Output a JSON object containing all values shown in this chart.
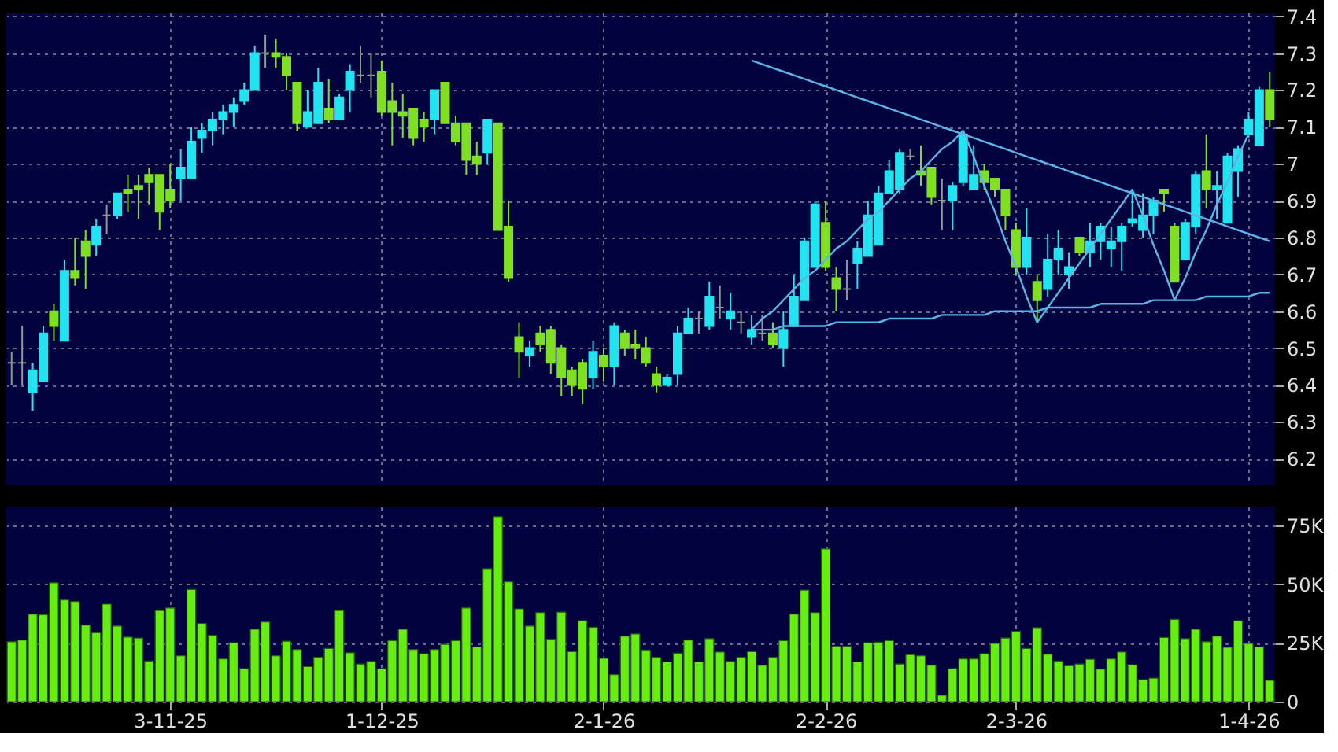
{
  "chart_data": [
    {
      "type": "candlestick",
      "tick_labels": "y",
      "grid": true,
      "ylim": [
        6.13,
        7.41
      ],
      "yticks": [
        6.2,
        6.3,
        6.4,
        6.5,
        6.6,
        6.7,
        6.8,
        6.9,
        7,
        7.1,
        7.2,
        7.3,
        7.4
      ],
      "categories": [
        null,
        null,
        null,
        null,
        null,
        null,
        null,
        null,
        null,
        null,
        null,
        null,
        null,
        null,
        null,
        null,
        null,
        null,
        null,
        null,
        null,
        null,
        null,
        null,
        null,
        null,
        null,
        null,
        null,
        null,
        null,
        null,
        null,
        null,
        null,
        null,
        null,
        null,
        null,
        null,
        null,
        null,
        null,
        null,
        null,
        null,
        null,
        null,
        null,
        null,
        null,
        null,
        null,
        null,
        null,
        null,
        null,
        null,
        null,
        null,
        null,
        null,
        null,
        null,
        null,
        null,
        null,
        null,
        null,
        null,
        null,
        null,
        null,
        null,
        null,
        null,
        null,
        null,
        null,
        null,
        null,
        null,
        null,
        null,
        null,
        null,
        null,
        null,
        null,
        null,
        null,
        null,
        null,
        null,
        null,
        null,
        null,
        null,
        null,
        null,
        null,
        null,
        null,
        null,
        null,
        null,
        null,
        null,
        null,
        null,
        null,
        null,
        null,
        null,
        null,
        null,
        null,
        null,
        null,
        null
      ],
      "ohlc": [
        [
          6.46,
          6.49,
          6.4,
          6.46
        ],
        [
          6.46,
          6.56,
          6.4,
          6.46
        ],
        [
          6.38,
          6.46,
          6.33,
          6.44
        ],
        [
          6.41,
          6.56,
          6.41,
          6.54
        ],
        [
          6.6,
          6.62,
          6.52,
          6.56
        ],
        [
          6.52,
          6.74,
          6.52,
          6.71
        ],
        [
          6.71,
          6.8,
          6.67,
          6.69
        ],
        [
          6.79,
          6.82,
          6.66,
          6.75
        ],
        [
          6.78,
          6.85,
          6.75,
          6.83
        ],
        [
          6.86,
          6.89,
          6.81,
          6.86
        ],
        [
          6.86,
          6.92,
          6.85,
          6.92
        ],
        [
          6.93,
          6.97,
          6.87,
          6.92
        ],
        [
          6.94,
          6.97,
          6.85,
          6.93
        ],
        [
          6.97,
          6.99,
          6.89,
          6.95
        ],
        [
          6.97,
          6.97,
          6.82,
          6.87
        ],
        [
          6.93,
          7.0,
          6.88,
          6.9
        ],
        [
          6.96,
          7.04,
          6.9,
          6.99
        ],
        [
          6.96,
          7.1,
          6.96,
          7.06
        ],
        [
          7.07,
          7.11,
          7.03,
          7.09
        ],
        [
          7.09,
          7.14,
          7.05,
          7.12
        ],
        [
          7.12,
          7.16,
          7.08,
          7.14
        ],
        [
          7.14,
          7.18,
          7.1,
          7.16
        ],
        [
          7.17,
          7.22,
          7.16,
          7.2
        ],
        [
          7.2,
          7.32,
          7.2,
          7.3
        ],
        [
          7.3,
          7.35,
          7.26,
          7.3
        ],
        [
          7.3,
          7.34,
          7.26,
          7.29
        ],
        [
          7.29,
          7.3,
          7.2,
          7.24
        ],
        [
          7.22,
          7.22,
          7.09,
          7.11
        ],
        [
          7.1,
          7.2,
          7.1,
          7.14
        ],
        [
          7.11,
          7.26,
          7.11,
          7.22
        ],
        [
          7.15,
          7.23,
          7.11,
          7.12
        ],
        [
          7.12,
          7.19,
          7.12,
          7.18
        ],
        [
          7.2,
          7.27,
          7.14,
          7.25
        ],
        [
          7.24,
          7.32,
          7.22,
          7.24
        ],
        [
          7.24,
          7.3,
          7.18,
          7.24
        ],
        [
          7.25,
          7.28,
          7.13,
          7.14
        ],
        [
          7.17,
          7.22,
          7.05,
          7.14
        ],
        [
          7.14,
          7.19,
          7.07,
          7.13
        ],
        [
          7.15,
          7.15,
          7.05,
          7.07
        ],
        [
          7.12,
          7.14,
          7.06,
          7.1
        ],
        [
          7.12,
          7.2,
          7.08,
          7.2
        ],
        [
          7.22,
          7.22,
          7.11,
          7.11
        ],
        [
          7.11,
          7.13,
          7.05,
          7.06
        ],
        [
          7.11,
          7.11,
          6.97,
          7.01
        ],
        [
          7.02,
          7.06,
          6.97,
          7.0
        ],
        [
          7.03,
          7.12,
          7.0,
          7.12
        ],
        [
          7.11,
          7.11,
          6.82,
          6.82
        ],
        [
          6.83,
          6.9,
          6.68,
          6.69
        ],
        [
          6.53,
          6.57,
          6.42,
          6.49
        ],
        [
          6.48,
          6.52,
          6.45,
          6.5
        ],
        [
          6.54,
          6.56,
          6.49,
          6.51
        ],
        [
          6.55,
          6.56,
          6.43,
          6.46
        ],
        [
          6.5,
          6.51,
          6.37,
          6.42
        ],
        [
          6.44,
          6.45,
          6.37,
          6.4
        ],
        [
          6.46,
          6.47,
          6.35,
          6.39
        ],
        [
          6.42,
          6.52,
          6.39,
          6.49
        ],
        [
          6.48,
          6.5,
          6.41,
          6.45
        ],
        [
          6.45,
          6.57,
          6.4,
          6.56
        ],
        [
          6.54,
          6.55,
          6.48,
          6.5
        ],
        [
          6.51,
          6.55,
          6.47,
          6.5
        ],
        [
          6.5,
          6.53,
          6.45,
          6.46
        ],
        [
          6.43,
          6.45,
          6.38,
          6.4
        ],
        [
          6.4,
          6.43,
          6.4,
          6.42
        ],
        [
          6.43,
          6.56,
          6.4,
          6.54
        ],
        [
          6.54,
          6.61,
          6.54,
          6.58
        ],
        [
          6.58,
          6.6,
          6.54,
          6.58
        ],
        [
          6.56,
          6.68,
          6.55,
          6.64
        ],
        [
          6.61,
          6.67,
          6.58,
          6.61
        ],
        [
          6.58,
          6.65,
          6.55,
          6.6
        ],
        [
          6.57,
          6.6,
          6.54,
          6.57
        ],
        [
          6.53,
          6.59,
          6.51,
          6.55
        ],
        [
          6.54,
          6.59,
          6.52,
          6.54
        ],
        [
          6.54,
          6.57,
          6.5,
          6.51
        ],
        [
          6.5,
          6.6,
          6.45,
          6.55
        ],
        [
          6.56,
          6.7,
          6.56,
          6.64
        ],
        [
          6.63,
          6.8,
          6.63,
          6.79
        ],
        [
          6.72,
          6.9,
          6.72,
          6.89
        ],
        [
          6.84,
          6.9,
          6.71,
          6.72
        ],
        [
          6.69,
          6.72,
          6.6,
          6.66
        ],
        [
          6.66,
          6.74,
          6.63,
          6.66
        ],
        [
          6.73,
          6.79,
          6.66,
          6.77
        ],
        [
          6.75,
          6.9,
          6.75,
          6.86
        ],
        [
          6.78,
          6.94,
          6.78,
          6.92
        ],
        [
          6.92,
          7.01,
          6.92,
          6.98
        ],
        [
          6.93,
          7.04,
          6.92,
          7.03
        ],
        [
          7.02,
          7.04,
          7.01,
          7.02
        ],
        [
          6.98,
          7.05,
          6.94,
          6.97
        ],
        [
          6.99,
          6.99,
          6.89,
          6.91
        ],
        [
          6.9,
          6.96,
          6.82,
          6.9
        ],
        [
          6.9,
          6.95,
          6.82,
          6.94
        ],
        [
          6.95,
          7.09,
          6.94,
          7.08
        ],
        [
          6.93,
          7.05,
          6.93,
          6.97
        ],
        [
          6.98,
          7.0,
          6.93,
          6.95
        ],
        [
          6.96,
          6.96,
          6.91,
          6.93
        ],
        [
          6.93,
          6.93,
          6.82,
          6.86
        ],
        [
          6.82,
          6.84,
          6.7,
          6.72
        ],
        [
          6.72,
          6.88,
          6.7,
          6.8
        ],
        [
          6.68,
          6.7,
          6.57,
          6.63
        ],
        [
          6.66,
          6.81,
          6.64,
          6.74
        ],
        [
          6.74,
          6.82,
          6.7,
          6.77
        ],
        [
          6.7,
          6.76,
          6.66,
          6.72
        ],
        [
          6.8,
          6.8,
          6.75,
          6.76
        ],
        [
          6.76,
          6.84,
          6.72,
          6.79
        ],
        [
          6.79,
          6.84,
          6.74,
          6.83
        ],
        [
          6.77,
          6.83,
          6.72,
          6.79
        ],
        [
          6.79,
          6.84,
          6.71,
          6.83
        ],
        [
          6.84,
          6.93,
          6.83,
          6.85
        ],
        [
          6.82,
          6.92,
          6.8,
          6.86
        ],
        [
          6.86,
          6.91,
          6.81,
          6.9
        ],
        [
          6.93,
          6.93,
          6.87,
          6.92
        ],
        [
          6.83,
          6.84,
          6.68,
          6.68
        ],
        [
          6.74,
          6.85,
          6.74,
          6.84
        ],
        [
          6.83,
          6.98,
          6.81,
          6.97
        ],
        [
          6.98,
          7.08,
          6.88,
          6.93
        ],
        [
          6.93,
          6.98,
          6.85,
          6.94
        ],
        [
          6.84,
          7.03,
          6.84,
          7.02
        ],
        [
          6.98,
          7.05,
          6.91,
          7.04
        ],
        [
          7.08,
          7.14,
          7.07,
          7.12
        ],
        [
          7.05,
          7.21,
          7.05,
          7.2
        ],
        [
          7.2,
          7.25,
          7.1,
          7.12
        ]
      ],
      "colors": [
        "#8c9c8c",
        "#8c9c8c",
        "#22e4f0",
        "#22e4f0",
        "#7ee021",
        "#22e4f0",
        "#7ee021",
        "#7ee021",
        "#22e4f0",
        "#8c9c8c",
        "#22e4f0",
        "#7ee021",
        "#7ee021",
        "#7ee021",
        "#7ee021",
        "#7ee021",
        "#22e4f0",
        "#22e4f0",
        "#22e4f0",
        "#22e4f0",
        "#22e4f0",
        "#22e4f0",
        "#22e4f0",
        "#22e4f0",
        "#8c9c8c",
        "#7ee021",
        "#7ee021",
        "#7ee021",
        "#22e4f0",
        "#22e4f0",
        "#7ee021",
        "#22e4f0",
        "#22e4f0",
        "#8c9c8c",
        "#8c9c8c",
        "#7ee021",
        "#7ee021",
        "#7ee021",
        "#7ee021",
        "#7ee021",
        "#22e4f0",
        "#7ee021",
        "#7ee021",
        "#7ee021",
        "#7ee021",
        "#22e4f0",
        "#7ee021",
        "#7ee021",
        "#7ee021",
        "#22e4f0",
        "#7ee021",
        "#7ee021",
        "#7ee021",
        "#7ee021",
        "#7ee021",
        "#22e4f0",
        "#7ee021",
        "#22e4f0",
        "#7ee021",
        "#7ee021",
        "#7ee021",
        "#7ee021",
        "#22e4f0",
        "#22e4f0",
        "#22e4f0",
        "#8c9c8c",
        "#22e4f0",
        "#8c9c8c",
        "#22e4f0",
        "#8c9c8c",
        "#22e4f0",
        "#8c9c8c",
        "#7ee021",
        "#22e4f0",
        "#22e4f0",
        "#22e4f0",
        "#22e4f0",
        "#7ee021",
        "#7ee021",
        "#8c9c8c",
        "#22e4f0",
        "#22e4f0",
        "#22e4f0",
        "#22e4f0",
        "#22e4f0",
        "#8c9c8c",
        "#7ee021",
        "#7ee021",
        "#8c9c8c",
        "#22e4f0",
        "#22e4f0",
        "#22e4f0",
        "#7ee021",
        "#7ee021",
        "#7ee021",
        "#7ee021",
        "#22e4f0",
        "#7ee021",
        "#22e4f0",
        "#22e4f0",
        "#22e4f0",
        "#7ee021",
        "#22e4f0",
        "#22e4f0",
        "#22e4f0",
        "#22e4f0",
        "#22e4f0",
        "#22e4f0",
        "#22e4f0",
        "#7ee021",
        "#7ee021",
        "#22e4f0",
        "#22e4f0",
        "#7ee021",
        "#22e4f0",
        "#22e4f0",
        "#22e4f0",
        "#22e4f0",
        "#22e4f0",
        "#7ee021"
      ],
      "series": [
        {
          "type": "line",
          "color": "#5ab4e6",
          "values": [
            null,
            null,
            null,
            null,
            null,
            null,
            null,
            null,
            null,
            null,
            null,
            null,
            null,
            null,
            null,
            null,
            null,
            null,
            null,
            null,
            null,
            null,
            null,
            null,
            null,
            null,
            null,
            null,
            null,
            null,
            null,
            null,
            null,
            null,
            null,
            null,
            null,
            null,
            null,
            null,
            null,
            null,
            null,
            null,
            null,
            null,
            null,
            null,
            null,
            null,
            null,
            null,
            null,
            null,
            null,
            null,
            null,
            null,
            null,
            null,
            null,
            null,
            null,
            null,
            null,
            null,
            null,
            null,
            null,
            null,
            7.28,
            7.27,
            7.26,
            7.25,
            7.24,
            7.23,
            7.22,
            7.21,
            7.2,
            7.19,
            7.18,
            7.17,
            7.16,
            7.15,
            7.14,
            7.13,
            7.12,
            7.11,
            7.1,
            7.09,
            7.08,
            7.07,
            7.06,
            7.05,
            7.04,
            7.03,
            7.02,
            7.01,
            7.0,
            6.99,
            6.98,
            6.97,
            6.96,
            6.95,
            6.94,
            6.93,
            6.92,
            6.91,
            6.9,
            6.89,
            6.88,
            6.87,
            6.86,
            6.85,
            6.84,
            6.83,
            6.82,
            6.81,
            6.8,
            6.79
          ]
        },
        {
          "type": "line",
          "color": "#5ab4e6",
          "values": [
            null,
            null,
            null,
            null,
            null,
            null,
            null,
            null,
            null,
            null,
            null,
            null,
            null,
            null,
            null,
            null,
            null,
            null,
            null,
            null,
            null,
            null,
            null,
            null,
            null,
            null,
            null,
            null,
            null,
            null,
            null,
            null,
            null,
            null,
            null,
            null,
            null,
            null,
            null,
            null,
            null,
            null,
            null,
            null,
            null,
            null,
            null,
            null,
            null,
            null,
            null,
            null,
            null,
            null,
            null,
            null,
            null,
            null,
            null,
            null,
            null,
            null,
            null,
            null,
            null,
            null,
            null,
            null,
            null,
            null,
            6.55,
            6.55,
            6.55,
            6.56,
            6.56,
            6.56,
            6.56,
            6.56,
            6.57,
            6.57,
            6.57,
            6.57,
            6.57,
            6.58,
            6.58,
            6.58,
            6.58,
            6.58,
            6.59,
            6.59,
            6.59,
            6.59,
            6.59,
            6.6,
            6.6,
            6.6,
            6.6,
            6.6,
            6.61,
            6.61,
            6.61,
            6.61,
            6.61,
            6.62,
            6.62,
            6.62,
            6.62,
            6.62,
            6.63,
            6.63,
            6.63,
            6.63,
            6.63,
            6.64,
            6.64,
            6.64,
            6.64,
            6.64,
            6.65,
            6.65
          ]
        },
        {
          "type": "line",
          "color": "#5ab4e6",
          "values": [
            null,
            null,
            null,
            null,
            null,
            null,
            null,
            null,
            null,
            null,
            null,
            null,
            null,
            null,
            null,
            null,
            null,
            null,
            null,
            null,
            null,
            null,
            null,
            null,
            null,
            null,
            null,
            null,
            null,
            null,
            null,
            null,
            null,
            null,
            null,
            null,
            null,
            null,
            null,
            null,
            null,
            null,
            null,
            null,
            null,
            null,
            null,
            null,
            null,
            null,
            null,
            null,
            null,
            null,
            null,
            null,
            null,
            null,
            null,
            null,
            null,
            null,
            null,
            null,
            null,
            null,
            null,
            null,
            null,
            null,
            6.55,
            6.58,
            6.6,
            6.63,
            6.66,
            6.69,
            6.71,
            6.74,
            6.77,
            6.79,
            6.82,
            6.85,
            6.87,
            6.9,
            6.93,
            6.96,
            6.98,
            7.01,
            7.04,
            7.06,
            7.09,
            7.02,
            6.94,
            6.87,
            6.79,
            6.72,
            6.64,
            6.57,
            6.61,
            6.65,
            6.69,
            6.73,
            6.77,
            6.81,
            6.85,
            6.89,
            6.93,
            6.86,
            6.78,
            6.71,
            6.63,
            6.69,
            6.76,
            6.82,
            6.89,
            6.95,
            7.02,
            7.08,
            null,
            null
          ]
        }
      ]
    },
    {
      "type": "bar",
      "grid": true,
      "color": "#66ee11",
      "ylim": [
        0,
        83000
      ],
      "yticks": [
        0,
        {
          "value": 25000,
          "label": "25K"
        },
        {
          "value": 50000,
          "label": "50K"
        },
        {
          "value": 75000,
          "label": "75K"
        }
      ],
      "categories": [
        null,
        null,
        null,
        null,
        null,
        null,
        null,
        null,
        null,
        null,
        null,
        null,
        null,
        null,
        null,
        "3-11-25",
        null,
        null,
        null,
        null,
        null,
        null,
        null,
        null,
        null,
        null,
        null,
        null,
        null,
        null,
        null,
        null,
        null,
        null,
        null,
        "1-12-25",
        null,
        null,
        null,
        null,
        null,
        null,
        null,
        null,
        null,
        null,
        null,
        null,
        null,
        null,
        null,
        null,
        null,
        null,
        null,
        null,
        "2-1-26",
        null,
        null,
        null,
        null,
        null,
        null,
        null,
        null,
        null,
        null,
        null,
        null,
        null,
        null,
        null,
        null,
        null,
        null,
        null,
        null,
        "2-2-26",
        null,
        null,
        null,
        null,
        null,
        null,
        null,
        null,
        null,
        null,
        null,
        null,
        null,
        null,
        null,
        null,
        null,
        "2-3-26",
        null,
        null,
        null,
        null,
        null,
        null,
        null,
        null,
        null,
        null,
        null,
        null,
        null,
        null,
        null,
        null,
        null,
        null,
        null,
        null,
        null,
        "1-4-26",
        null,
        null
      ],
      "values": [
        25500,
        26200,
        37300,
        37000,
        50600,
        43300,
        42600,
        32600,
        29300,
        41500,
        32200,
        27500,
        27100,
        17300,
        38800,
        39900,
        19500,
        47700,
        33300,
        28200,
        18200,
        25100,
        14000,
        30800,
        33900,
        19500,
        25700,
        22200,
        14900,
        18900,
        22600,
        38800,
        20800,
        16000,
        17100,
        14000,
        26000,
        30800,
        22200,
        20400,
        22200,
        24400,
        26000,
        39900,
        23300,
        56600,
        78700,
        51000,
        39500,
        32200,
        37900,
        26600,
        38100,
        21300,
        34400,
        31700,
        18400,
        11500,
        27900,
        28800,
        22000,
        18900,
        16900,
        20600,
        26200,
        16900,
        26800,
        21100,
        17100,
        18900,
        21300,
        15500,
        18900,
        26000,
        37300,
        47500,
        37900,
        65000,
        23500,
        23500,
        16900,
        25100,
        25300,
        26000,
        16000,
        20000,
        19500,
        15500,
        2700,
        14000,
        18200,
        18200,
        20400,
        24800,
        27100,
        29900,
        22600,
        31500,
        20200,
        17300,
        15300,
        16000,
        18000,
        13800,
        18200,
        21100,
        15700,
        9300,
        10000,
        27300,
        35000,
        26800,
        30800,
        25500,
        27900,
        23100,
        34400,
        24800,
        23300,
        9100
      ]
    }
  ]
}
